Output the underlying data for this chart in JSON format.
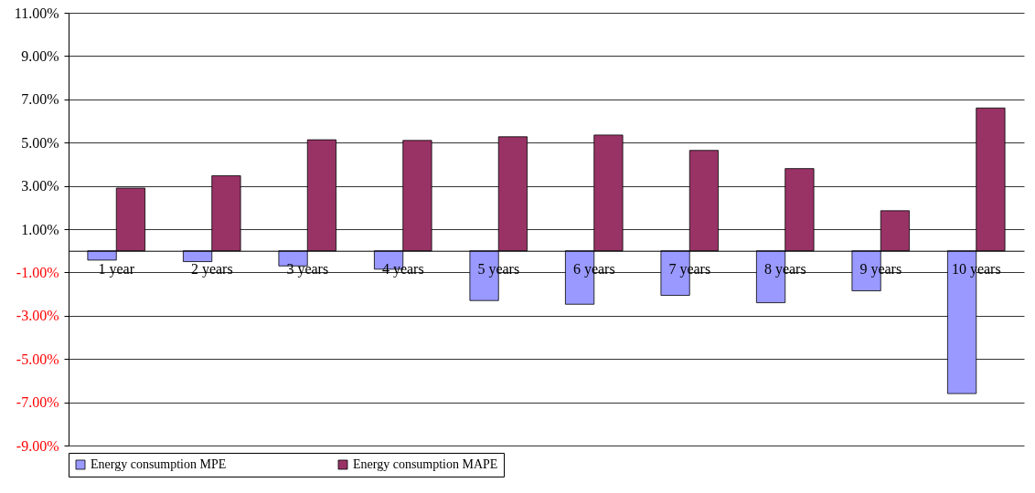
{
  "chart_data": {
    "type": "bar",
    "categories": [
      "1 year",
      "2 years",
      "3 years",
      "4 years",
      "5 years",
      "6 years",
      "7 years",
      "8 years",
      "9 years",
      "10 years"
    ],
    "series": [
      {
        "name": "Energy consumption MPE",
        "color": "#9999ff",
        "values": [
          -0.43,
          -0.5,
          -0.7,
          -0.85,
          -2.3,
          -2.47,
          -2.06,
          -2.4,
          -1.85,
          -6.6
        ]
      },
      {
        "name": "Energy consumption MAPE",
        "color": "#993366",
        "values": [
          2.9,
          3.47,
          5.13,
          5.1,
          5.27,
          5.35,
          4.64,
          3.8,
          1.85,
          6.6
        ]
      }
    ],
    "ylim": [
      -9,
      11
    ],
    "yticks": [
      {
        "value": -9,
        "label": "-9.00%"
      },
      {
        "value": -7,
        "label": "-7.00%"
      },
      {
        "value": -5,
        "label": "-5.00%"
      },
      {
        "value": -3,
        "label": "-3.00%"
      },
      {
        "value": -1,
        "label": "-1.00%"
      },
      {
        "value": 1,
        "label": "1.00%"
      },
      {
        "value": 3,
        "label": "3.00%"
      },
      {
        "value": 5,
        "label": "5.00%"
      },
      {
        "value": 7,
        "label": "7.00%"
      },
      {
        "value": 9,
        "label": "9.00%"
      },
      {
        "value": 11,
        "label": "11.00%"
      }
    ],
    "grid": "y",
    "legend": "bottom"
  }
}
